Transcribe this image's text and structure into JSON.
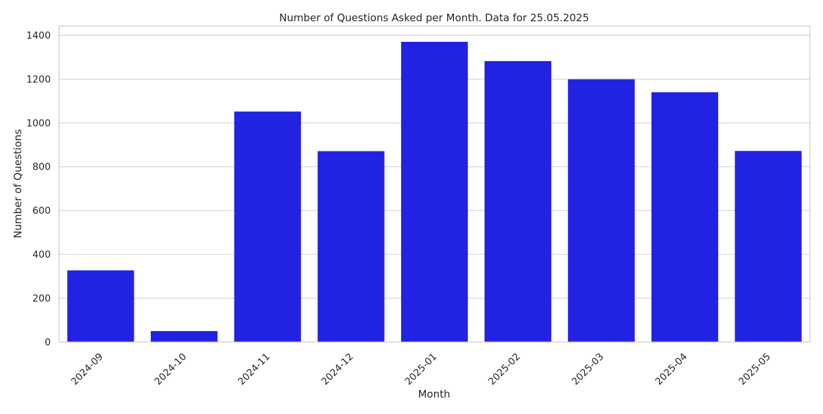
{
  "chart_data": {
    "type": "bar",
    "title": "Number of Questions Asked per Month. Data for 25.05.2025",
    "xlabel": "Month",
    "ylabel": "Number of Questions",
    "categories": [
      "2024-09",
      "2024-10",
      "2024-11",
      "2024-12",
      "2025-01",
      "2025-02",
      "2025-03",
      "2025-04",
      "2025-05"
    ],
    "values": [
      327,
      50,
      1052,
      871,
      1370,
      1282,
      1199,
      1140,
      872
    ],
    "ylim": [
      0,
      1442
    ],
    "yticks": [
      0,
      200,
      400,
      600,
      800,
      1000,
      1200,
      1400
    ],
    "grid": "horizontal",
    "colors": {
      "bar": "#2222e3",
      "grid": "#d0d0d0",
      "axes_border": "#cccccc",
      "text": "#262626"
    },
    "xtick_rotation": "45 degrees"
  }
}
